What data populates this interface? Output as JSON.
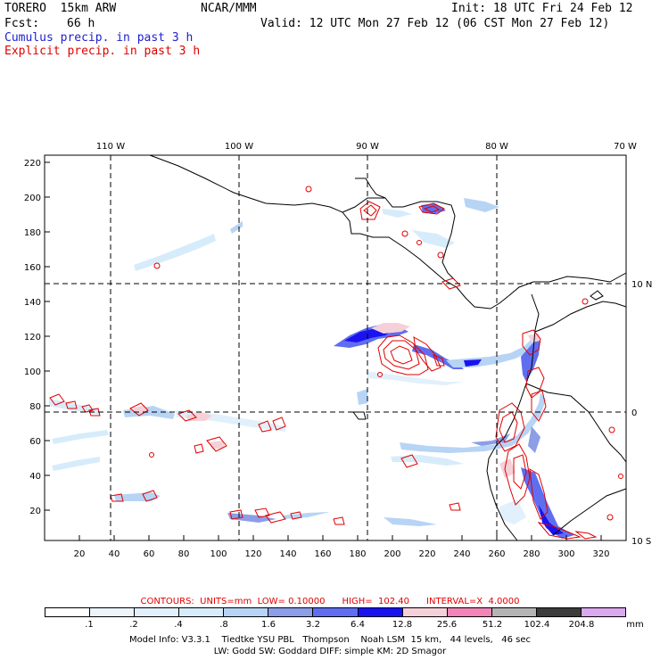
{
  "header": {
    "model": "TORERO  15km ARW",
    "org": "NCAR/MMM",
    "init": "Init: 18 UTC Fri 24 Feb 12",
    "fcst_label": "Fcst:",
    "fcst_hours": "66 h",
    "valid": "Valid: 12 UTC Mon 27 Feb 12 (06 CST Mon 27 Feb 12)",
    "cumulus_label": "Cumulus precip. in past 3 h",
    "explicit_label": "Explicit precip. in past 3 h"
  },
  "axes": {
    "top_lon_labels": [
      "110 W",
      "100 W",
      "90 W",
      "80 W",
      "70 W"
    ],
    "right_lat_labels": [
      "10 N",
      "0",
      "10 S"
    ],
    "left_ticks": [
      "220",
      "200",
      "180",
      "160",
      "140",
      "120",
      "100",
      "80",
      "60",
      "40",
      "20"
    ],
    "bottom_ticks": [
      "20",
      "40",
      "60",
      "80",
      "100",
      "120",
      "140",
      "160",
      "180",
      "200",
      "220",
      "240",
      "260",
      "280",
      "300",
      "320"
    ]
  },
  "contours_line": {
    "label": "CONTOURS:  UNITS=mm  LOW= 0.10000      HIGH=  102.40      INTERVAL=X  4.0000"
  },
  "legend": {
    "colors": [
      "#ffffff",
      "#edf4fb",
      "#e1f0fb",
      "#d7ecfb",
      "#b7d4f5",
      "#8c9ee8",
      "#5f6ef0",
      "#1a12f0",
      "#f6d0d8",
      "#f285b8",
      "#b4b4b4",
      "#3c3c3c",
      "#d9a8ee"
    ],
    "labels": [
      ".1",
      ".2",
      ".4",
      ".8",
      "1.6",
      "3.2",
      "6.4",
      "12.8",
      "25.6",
      "51.2",
      "102.4",
      "204.8"
    ],
    "unit": "mm"
  },
  "footer": {
    "line1": "Model Info: V3.3.1    Tiedtke YSU PBL   Thompson    Noah LSM  15 km,   44 levels,   46 sec",
    "line2": "LW: Godd SW: Goddard DIFF: simple KM: 2D Smagor"
  }
}
